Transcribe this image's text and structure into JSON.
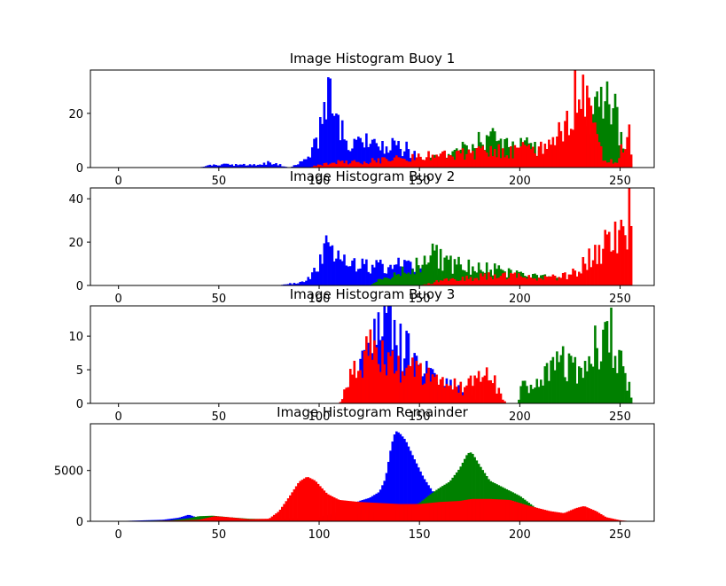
{
  "colors": {
    "blue": "#0000ff",
    "green": "#008000",
    "red": "#ff0000",
    "axes": "#000000",
    "background": "#ffffff"
  },
  "chart_data": [
    {
      "type": "histogram",
      "title": "Image Histogram Buoy 1",
      "xlim": [
        -14,
        267
      ],
      "ylim": [
        0,
        36
      ],
      "xticks": [
        0,
        50,
        100,
        150,
        200,
        250
      ],
      "yticks": [
        0,
        20
      ],
      "series": [
        {
          "color": "blue",
          "profile": [
            [
              0,
              0
            ],
            [
              40,
              0
            ],
            [
              47,
              1
            ],
            [
              52,
              1
            ],
            [
              60,
              1
            ],
            [
              70,
              1
            ],
            [
              75,
              2
            ],
            [
              80,
              1
            ],
            [
              85,
              0
            ],
            [
              95,
              3
            ],
            [
              100,
              12
            ],
            [
              104,
              22
            ],
            [
              106,
              34
            ],
            [
              108,
              20
            ],
            [
              111,
              14
            ],
            [
              115,
              10
            ],
            [
              120,
              8
            ],
            [
              125,
              9
            ],
            [
              130,
              7
            ],
            [
              140,
              8
            ],
            [
              146,
              6
            ],
            [
              150,
              3
            ],
            [
              155,
              1
            ],
            [
              160,
              0
            ],
            [
              256,
              0
            ]
          ]
        },
        {
          "color": "green",
          "profile": [
            [
              0,
              0
            ],
            [
              140,
              0
            ],
            [
              148,
              2
            ],
            [
              160,
              4
            ],
            [
              170,
              6
            ],
            [
              178,
              10
            ],
            [
              185,
              11
            ],
            [
              190,
              9
            ],
            [
              195,
              8
            ],
            [
              205,
              8
            ],
            [
              215,
              6
            ],
            [
              222,
              4
            ],
            [
              228,
              6
            ],
            [
              232,
              10
            ],
            [
              236,
              18
            ],
            [
              241,
              24
            ],
            [
              245,
              30
            ],
            [
              248,
              18
            ],
            [
              252,
              4
            ],
            [
              255,
              3
            ],
            [
              256,
              0
            ]
          ]
        },
        {
          "color": "red",
          "profile": [
            [
              0,
              0
            ],
            [
              95,
              0
            ],
            [
              100,
              1
            ],
            [
              110,
              2
            ],
            [
              120,
              2
            ],
            [
              135,
              3
            ],
            [
              150,
              4
            ],
            [
              165,
              5
            ],
            [
              175,
              5
            ],
            [
              185,
              6
            ],
            [
              195,
              6
            ],
            [
              205,
              7
            ],
            [
              215,
              8
            ],
            [
              222,
              14
            ],
            [
              227,
              25
            ],
            [
              230,
              32
            ],
            [
              234,
              26
            ],
            [
              238,
              10
            ],
            [
              242,
              3
            ],
            [
              248,
              2
            ],
            [
              255,
              15
            ],
            [
              256,
              0
            ]
          ]
        }
      ]
    },
    {
      "type": "histogram",
      "title": "Image Histogram Buoy 2",
      "xlim": [
        -14,
        267
      ],
      "ylim": [
        0,
        45
      ],
      "xticks": [
        0,
        50,
        100,
        150,
        200,
        250
      ],
      "yticks": [
        0,
        20,
        40
      ],
      "series": [
        {
          "color": "blue",
          "profile": [
            [
              0,
              0
            ],
            [
              80,
              0
            ],
            [
              85,
              1
            ],
            [
              90,
              1
            ],
            [
              95,
              3
            ],
            [
              100,
              10
            ],
            [
              103,
              23
            ],
            [
              106,
              15
            ],
            [
              110,
              12
            ],
            [
              115,
              11
            ],
            [
              120,
              10
            ],
            [
              130,
              9
            ],
            [
              140,
              9
            ],
            [
              150,
              8
            ],
            [
              160,
              4
            ],
            [
              170,
              2
            ],
            [
              180,
              0
            ],
            [
              256,
              0
            ]
          ]
        },
        {
          "color": "green",
          "profile": [
            [
              0,
              0
            ],
            [
              125,
              0
            ],
            [
              135,
              5
            ],
            [
              145,
              8
            ],
            [
              150,
              10
            ],
            [
              155,
              14
            ],
            [
              160,
              13
            ],
            [
              165,
              10
            ],
            [
              170,
              9
            ],
            [
              180,
              8
            ],
            [
              190,
              7
            ],
            [
              200,
              6
            ],
            [
              210,
              4
            ],
            [
              220,
              3
            ],
            [
              226,
              1
            ],
            [
              230,
              0
            ],
            [
              256,
              0
            ]
          ]
        },
        {
          "color": "red",
          "profile": [
            [
              0,
              0
            ],
            [
              150,
              0
            ],
            [
              160,
              2
            ],
            [
              170,
              3
            ],
            [
              180,
              4
            ],
            [
              190,
              5
            ],
            [
              200,
              4
            ],
            [
              210,
              4
            ],
            [
              220,
              4
            ],
            [
              228,
              6
            ],
            [
              232,
              10
            ],
            [
              237,
              14
            ],
            [
              242,
              18
            ],
            [
              246,
              20
            ],
            [
              250,
              22
            ],
            [
              253,
              25
            ],
            [
              255,
              43
            ],
            [
              256,
              0
            ]
          ]
        }
      ]
    },
    {
      "type": "histogram",
      "title": "Image Histogram Buoy 3",
      "xlim": [
        -14,
        267
      ],
      "ylim": [
        0,
        14.5
      ],
      "xticks": [
        0,
        50,
        100,
        150,
        200,
        250
      ],
      "yticks": [
        0,
        5,
        10
      ],
      "series": [
        {
          "color": "blue",
          "profile": [
            [
              0,
              0
            ],
            [
              110,
              0
            ],
            [
              115,
              2
            ],
            [
              120,
              5
            ],
            [
              124,
              7
            ],
            [
              128,
              10
            ],
            [
              132,
              12
            ],
            [
              136,
              14
            ],
            [
              140,
              9
            ],
            [
              145,
              7
            ],
            [
              150,
              6
            ],
            [
              155,
              4
            ],
            [
              160,
              3
            ],
            [
              170,
              2
            ],
            [
              175,
              1
            ],
            [
              180,
              0
            ],
            [
              256,
              0
            ]
          ]
        },
        {
          "color": "green",
          "profile": [
            [
              0,
              0
            ],
            [
              199,
              0
            ],
            [
              201,
              3
            ],
            [
              205,
              2
            ],
            [
              210,
              3
            ],
            [
              215,
              5
            ],
            [
              220,
              7
            ],
            [
              225,
              5
            ],
            [
              230,
              5
            ],
            [
              236,
              8
            ],
            [
              240,
              9
            ],
            [
              243,
              13
            ],
            [
              246,
              10
            ],
            [
              250,
              6
            ],
            [
              254,
              3
            ],
            [
              256,
              0
            ]
          ]
        },
        {
          "color": "red",
          "profile": [
            [
              0,
              0
            ],
            [
              110,
              0
            ],
            [
              113,
              2
            ],
            [
              117,
              5
            ],
            [
              122,
              7
            ],
            [
              127,
              8
            ],
            [
              133,
              6
            ],
            [
              140,
              5
            ],
            [
              146,
              5
            ],
            [
              152,
              4
            ],
            [
              158,
              4
            ],
            [
              165,
              3
            ],
            [
              172,
              2
            ],
            [
              180,
              4
            ],
            [
              185,
              4
            ],
            [
              190,
              2
            ],
            [
              193,
              0
            ],
            [
              256,
              0
            ]
          ]
        }
      ]
    },
    {
      "type": "histogram",
      "title": "Image Histogram Remainder",
      "xlim": [
        -14,
        267
      ],
      "ylim": [
        0,
        9600
      ],
      "xticks": [
        0,
        50,
        100,
        150,
        200,
        250
      ],
      "yticks": [
        0,
        5000
      ],
      "series": [
        {
          "color": "blue",
          "profile": [
            [
              0,
              20
            ],
            [
              22,
              150
            ],
            [
              30,
              350
            ],
            [
              35,
              650
            ],
            [
              40,
              300
            ],
            [
              50,
              150
            ],
            [
              70,
              120
            ],
            [
              100,
              400
            ],
            [
              110,
              900
            ],
            [
              115,
              1500
            ],
            [
              120,
              2000
            ],
            [
              125,
              2300
            ],
            [
              130,
              2900
            ],
            [
              133,
              4200
            ],
            [
              136,
              7500
            ],
            [
              138,
              8900
            ],
            [
              140,
              8700
            ],
            [
              143,
              8000
            ],
            [
              147,
              6300
            ],
            [
              152,
              4300
            ],
            [
              158,
              2500
            ],
            [
              165,
              1400
            ],
            [
              175,
              1500
            ],
            [
              190,
              1700
            ],
            [
              200,
              1000
            ],
            [
              210,
              500
            ],
            [
              230,
              200
            ],
            [
              256,
              0
            ]
          ]
        },
        {
          "color": "green",
          "profile": [
            [
              0,
              10
            ],
            [
              25,
              80
            ],
            [
              35,
              300
            ],
            [
              40,
              500
            ],
            [
              47,
              550
            ],
            [
              55,
              400
            ],
            [
              65,
              250
            ],
            [
              80,
              200
            ],
            [
              100,
              300
            ],
            [
              120,
              700
            ],
            [
              140,
              1200
            ],
            [
              150,
              1800
            ],
            [
              155,
              2600
            ],
            [
              160,
              3300
            ],
            [
              165,
              3900
            ],
            [
              170,
              5200
            ],
            [
              174,
              6700
            ],
            [
              176,
              6800
            ],
            [
              180,
              5500
            ],
            [
              185,
              4000
            ],
            [
              190,
              3500
            ],
            [
              195,
              3000
            ],
            [
              200,
              2500
            ],
            [
              210,
              1000
            ],
            [
              220,
              500
            ],
            [
              235,
              200
            ],
            [
              256,
              0
            ]
          ]
        },
        {
          "color": "red",
          "profile": [
            [
              0,
              0
            ],
            [
              30,
              80
            ],
            [
              40,
              150
            ],
            [
              48,
              500
            ],
            [
              55,
              400
            ],
            [
              65,
              200
            ],
            [
              75,
              250
            ],
            [
              80,
              1000
            ],
            [
              85,
              2400
            ],
            [
              90,
              3900
            ],
            [
              94,
              4400
            ],
            [
              98,
              4000
            ],
            [
              104,
              2700
            ],
            [
              110,
              2100
            ],
            [
              120,
              1900
            ],
            [
              130,
              1800
            ],
            [
              140,
              1700
            ],
            [
              150,
              1700
            ],
            [
              160,
              1900
            ],
            [
              170,
              2000
            ],
            [
              176,
              2200
            ],
            [
              185,
              2200
            ],
            [
              195,
              2100
            ],
            [
              205,
              1500
            ],
            [
              215,
              1000
            ],
            [
              222,
              800
            ],
            [
              228,
              1300
            ],
            [
              232,
              1500
            ],
            [
              238,
              1000
            ],
            [
              243,
              400
            ],
            [
              250,
              100
            ],
            [
              256,
              0
            ]
          ]
        }
      ]
    }
  ]
}
